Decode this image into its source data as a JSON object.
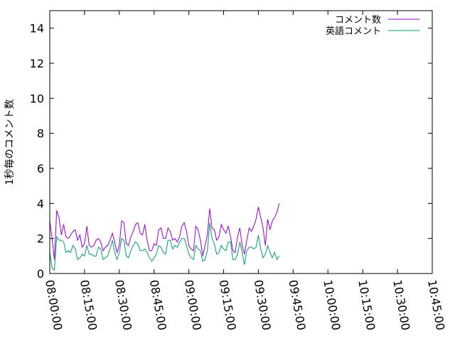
{
  "chart_data": {
    "type": "line",
    "title": "",
    "xlabel": "",
    "ylabel": "1秒毎のコメント数",
    "x_start_sec": 0,
    "x_step_sec": 60,
    "xlim": [
      "08:00:00",
      "10:45:00"
    ],
    "ylim": [
      0,
      15
    ],
    "x_ticks": [
      "08:00:00",
      "08:15:00",
      "08:30:00",
      "08:45:00",
      "09:00:00",
      "09:15:00",
      "09:30:00",
      "09:45:00",
      "10:00:00",
      "10:15:00",
      "10:30:00",
      "10:45:00"
    ],
    "y_ticks": [
      "0",
      "2",
      "4",
      "6",
      "8",
      "10",
      "12",
      "14"
    ],
    "grid": false,
    "legend_position": "top-right",
    "series": [
      {
        "name": "コメント数",
        "color": "#9400d3",
        "values": [
          3.0,
          2.0,
          0.8,
          3.6,
          3.2,
          2.2,
          2.8,
          2.1,
          2.0,
          2.2,
          2.4,
          2.5,
          1.9,
          2.2,
          1.5,
          1.7,
          2.7,
          1.6,
          1.5,
          1.6,
          1.9,
          2.0,
          1.8,
          1.3,
          1.5,
          1.6,
          1.9,
          2.3,
          1.8,
          1.2,
          1.6,
          3.0,
          2.9,
          1.7,
          1.6,
          2.1,
          2.4,
          2.8,
          2.9,
          2.3,
          2.2,
          2.8,
          1.9,
          1.3,
          1.3,
          1.7,
          1.6,
          2.5,
          2.6,
          2.0,
          2.0,
          2.6,
          2.4,
          1.9,
          2.0,
          1.8,
          2.1,
          2.7,
          2.9,
          2.4,
          1.6,
          1.4,
          1.3,
          2.7,
          2.5,
          1.9,
          1.0,
          1.6,
          2.2,
          3.7,
          2.6,
          2.5,
          1.9,
          2.1,
          2.8,
          2.5,
          2.3,
          2.7,
          2.1,
          1.3,
          1.2,
          2.1,
          2.6,
          1.6,
          1.1,
          1.9,
          2.6,
          2.4,
          2.7,
          3.1,
          3.8,
          3.2,
          2.6,
          1.6,
          3.1,
          2.5,
          3.0,
          3.2,
          3.5,
          4.0
        ]
      },
      {
        "name": "英語コメント",
        "color": "#009e73",
        "values": [
          1.2,
          0.3,
          0.2,
          2.1,
          1.9,
          1.9,
          1.8,
          1.2,
          1.3,
          1.2,
          1.6,
          1.4,
          0.8,
          0.9,
          1.1,
          1.0,
          1.6,
          1.1,
          1.1,
          1.0,
          1.0,
          1.5,
          1.4,
          0.8,
          0.9,
          1.0,
          1.4,
          1.9,
          1.2,
          0.8,
          1.2,
          2.0,
          1.9,
          1.0,
          0.9,
          1.3,
          1.6,
          1.8,
          1.7,
          1.3,
          1.3,
          1.4,
          1.2,
          0.9,
          0.7,
          0.9,
          1.1,
          1.6,
          1.5,
          1.2,
          1.1,
          1.9,
          1.9,
          1.4,
          1.6,
          1.5,
          1.8,
          2.0,
          2.0,
          1.6,
          1.1,
          0.9,
          0.8,
          1.6,
          1.4,
          1.3,
          0.7,
          0.8,
          1.3,
          2.9,
          2.0,
          1.7,
          1.1,
          1.2,
          1.6,
          1.4,
          1.3,
          1.8,
          1.8,
          0.8,
          0.8,
          1.1,
          1.8,
          1.2,
          0.5,
          1.3,
          1.5,
          1.5,
          1.4,
          1.5,
          2.2,
          1.4,
          0.9,
          1.1,
          1.6,
          1.2,
          0.9,
          1.2,
          0.8,
          1.0
        ]
      }
    ]
  }
}
